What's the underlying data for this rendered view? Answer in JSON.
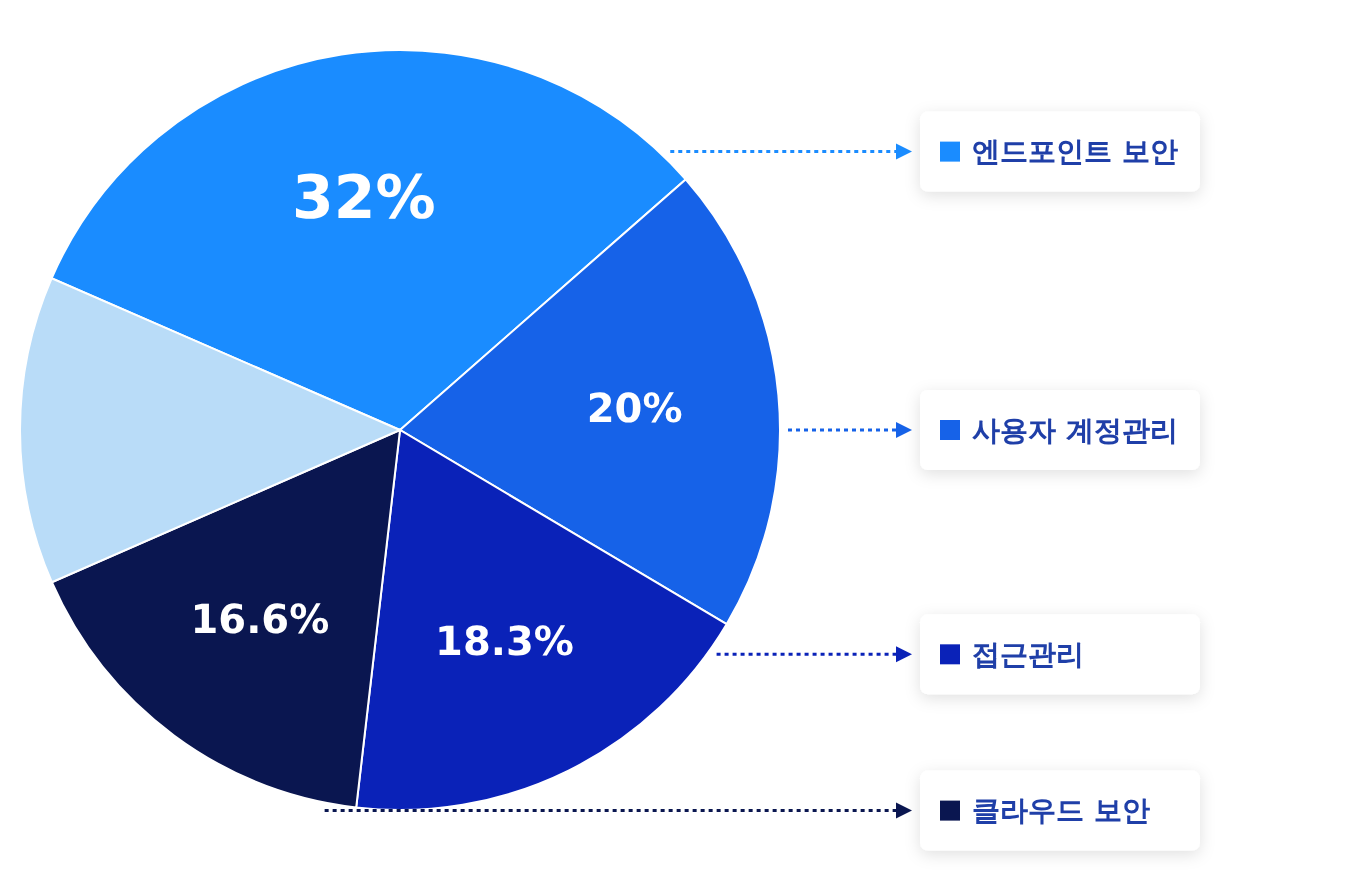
{
  "chart_data": {
    "type": "pie",
    "categories": [
      "엔드포인트 보안",
      "사용자 계정관리",
      "접근관리",
      "클라우드 보안",
      null
    ],
    "values": [
      32,
      20,
      18.3,
      16.6,
      13.1
    ],
    "colors": [
      "#1a8cff",
      "#1662e8",
      "#0a22b8",
      "#0a1650",
      "#b9dcf8"
    ],
    "value_labels": [
      "32%",
      "20%",
      "18.3%",
      "16.6%",
      null
    ],
    "legend": "right"
  }
}
